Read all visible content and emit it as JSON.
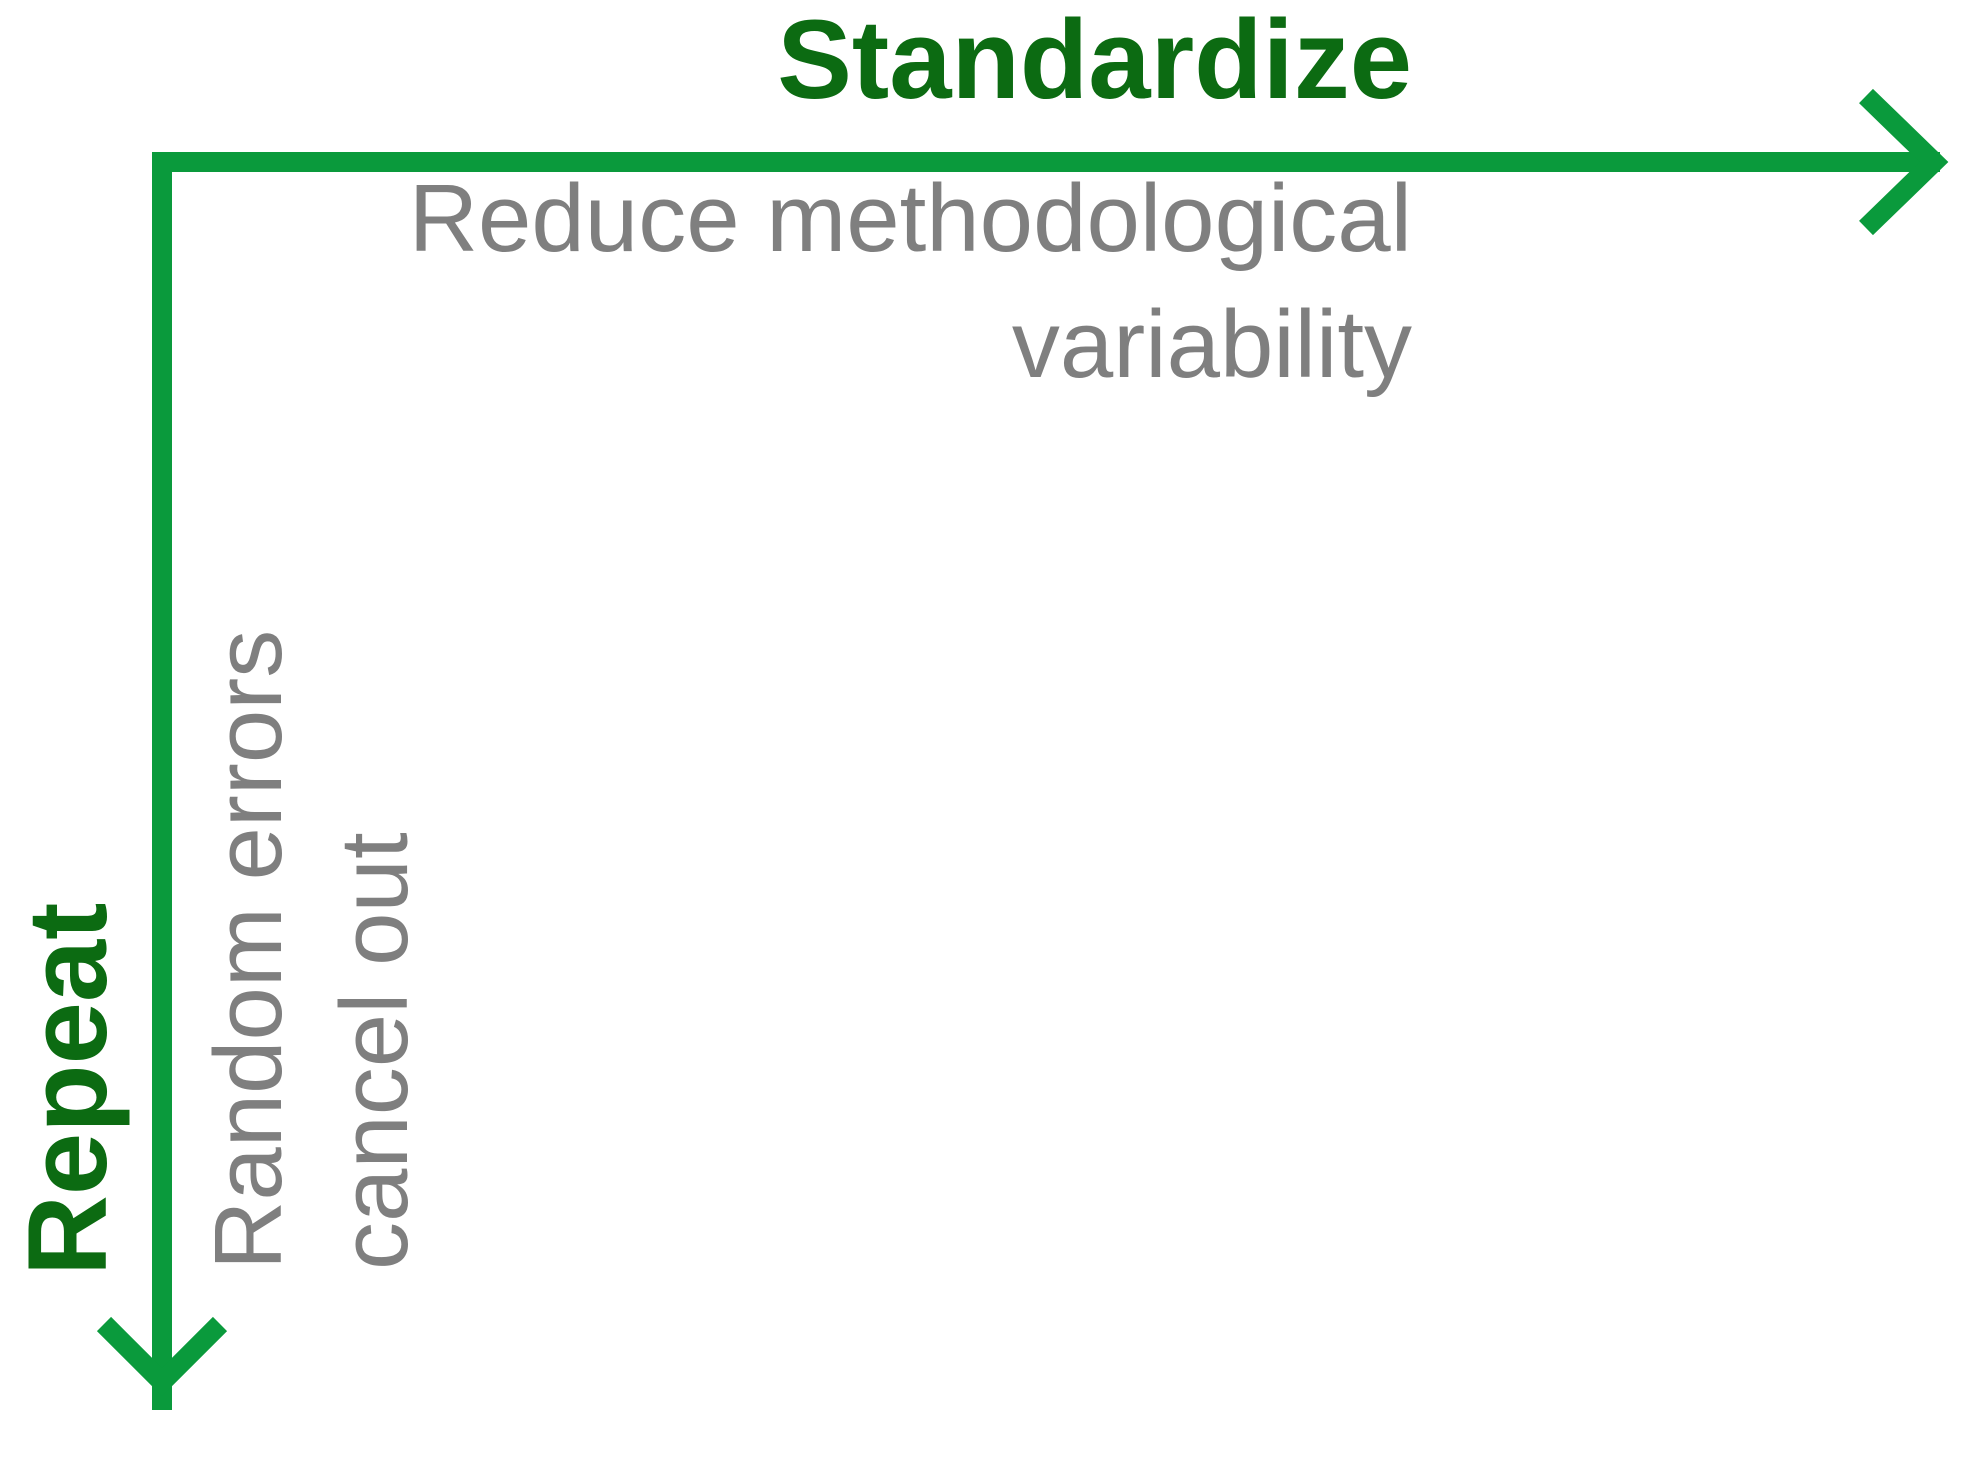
{
  "colors": {
    "arrow": "#0a9a3c",
    "title": "#0c6b12",
    "description": "#7f7f7f",
    "background": "#ffffff"
  },
  "horizontal_axis": {
    "title": "Standardize",
    "description_lines": [
      "Reduce methodological",
      "variability"
    ]
  },
  "vertical_axis": {
    "title": "Repeat",
    "description_lines": [
      "Random errors",
      "cancel out"
    ]
  }
}
